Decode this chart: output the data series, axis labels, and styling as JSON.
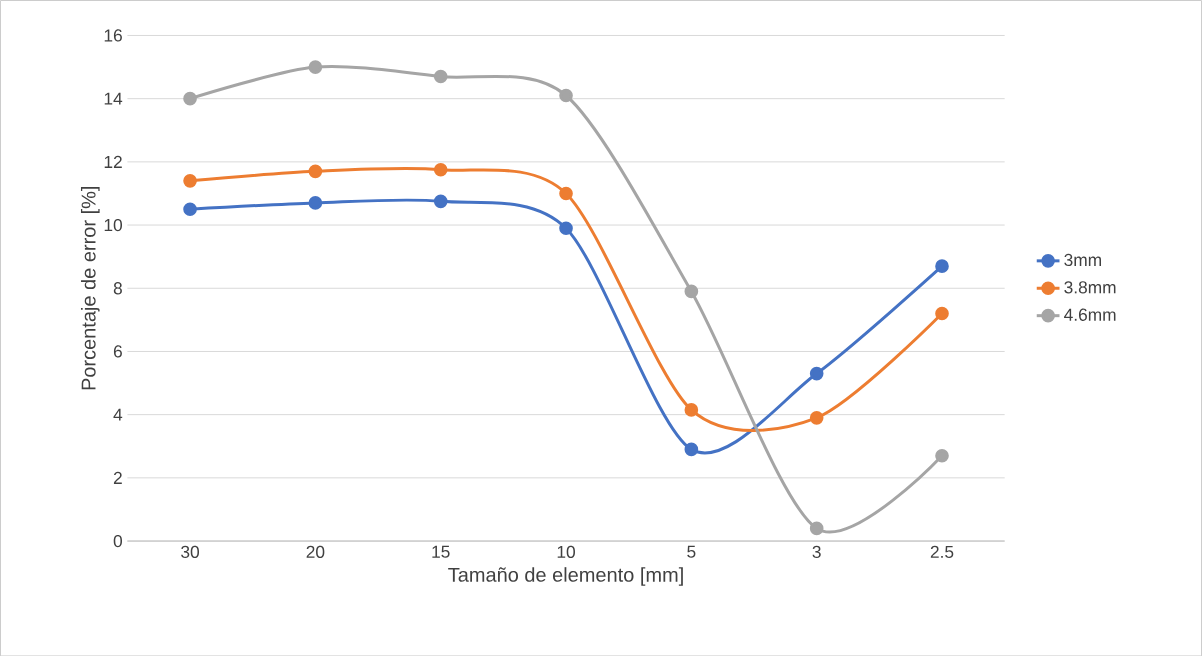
{
  "chart_data": {
    "type": "line",
    "xlabel": "Tamaño de elemento [mm]",
    "ylabel": "Porcentaje de error [%]",
    "categories": [
      "30",
      "20",
      "15",
      "10",
      "5",
      "3",
      "2.5"
    ],
    "series": [
      {
        "name": "3mm",
        "color": "#4472c4",
        "values": [
          10.5,
          10.7,
          10.75,
          9.9,
          2.9,
          5.3,
          8.7
        ]
      },
      {
        "name": "3.8mm",
        "color": "#ed7d31",
        "values": [
          11.4,
          11.7,
          11.75,
          11.0,
          4.15,
          3.9,
          7.2
        ]
      },
      {
        "name": "4.6mm",
        "color": "#a5a5a5",
        "values": [
          14.0,
          15.0,
          14.7,
          14.1,
          7.9,
          0.4,
          2.7
        ]
      }
    ],
    "ylim": [
      0,
      16
    ],
    "yticks": [
      0,
      2,
      4,
      6,
      8,
      10,
      12,
      14,
      16
    ],
    "grid": "y",
    "legend": "right",
    "marker": "circle",
    "line_style": "solid"
  }
}
